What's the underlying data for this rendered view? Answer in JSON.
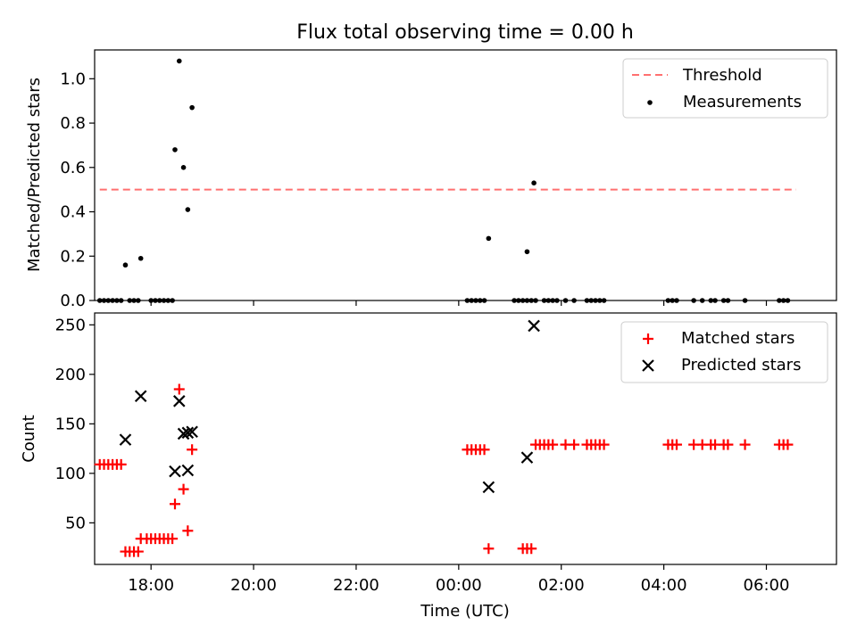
{
  "chart_data": [
    {
      "type": "scatter",
      "title": "Flux total observing time = 0.00 h",
      "xlabel": "",
      "ylabel": "Matched/Predicted stars",
      "xlim": [
        "16:54",
        "07:22"
      ],
      "ylim": [
        0.0,
        1.13
      ],
      "xticks": [
        "18:00",
        "20:00",
        "22:00",
        "00:00",
        "02:00",
        "04:00",
        "06:00"
      ],
      "yticks": [
        "0.0",
        "0.2",
        "0.4",
        "0.6",
        "0.8",
        "1.0"
      ],
      "threshold": 0.5,
      "legend": {
        "placement": "top-right",
        "entries": [
          "Threshold",
          "Measurements"
        ]
      },
      "series": [
        {
          "name": "Measurements",
          "color": "#000000",
          "points": [
            [
              "17:00",
              0
            ],
            [
              "17:05",
              0
            ],
            [
              "17:10",
              0
            ],
            [
              "17:15",
              0
            ],
            [
              "17:20",
              0
            ],
            [
              "17:25",
              0
            ],
            [
              "17:30",
              0.16
            ],
            [
              "17:35",
              0
            ],
            [
              "17:40",
              0
            ],
            [
              "17:45",
              0
            ],
            [
              "17:48",
              0.19
            ],
            [
              "18:00",
              0
            ],
            [
              "18:05",
              0
            ],
            [
              "18:10",
              0
            ],
            [
              "18:15",
              0
            ],
            [
              "18:20",
              0
            ],
            [
              "18:25",
              0
            ],
            [
              "18:28",
              0.68
            ],
            [
              "18:33",
              1.08
            ],
            [
              "18:38",
              0.6
            ],
            [
              "18:43",
              0.41
            ],
            [
              "18:48",
              0.87
            ],
            [
              "00:10",
              0
            ],
            [
              "00:15",
              0
            ],
            [
              "00:20",
              0
            ],
            [
              "00:25",
              0
            ],
            [
              "00:30",
              0
            ],
            [
              "00:35",
              0.28
            ],
            [
              "01:05",
              0
            ],
            [
              "01:10",
              0
            ],
            [
              "01:15",
              0
            ],
            [
              "01:20",
              0
            ],
            [
              "01:25",
              0
            ],
            [
              "01:30",
              0
            ],
            [
              "01:20",
              0.22
            ],
            [
              "01:28",
              0.53
            ],
            [
              "01:40",
              0
            ],
            [
              "01:45",
              0
            ],
            [
              "01:50",
              0
            ],
            [
              "01:55",
              0
            ],
            [
              "02:05",
              0
            ],
            [
              "02:15",
              0
            ],
            [
              "02:30",
              0
            ],
            [
              "02:35",
              0
            ],
            [
              "02:40",
              0
            ],
            [
              "02:45",
              0
            ],
            [
              "02:50",
              0
            ],
            [
              "04:05",
              0
            ],
            [
              "04:10",
              0
            ],
            [
              "04:15",
              0
            ],
            [
              "04:35",
              0
            ],
            [
              "04:45",
              0
            ],
            [
              "04:55",
              0
            ],
            [
              "05:00",
              0
            ],
            [
              "05:10",
              0
            ],
            [
              "05:15",
              0
            ],
            [
              "05:35",
              0
            ],
            [
              "06:15",
              0
            ],
            [
              "06:20",
              0
            ],
            [
              "06:25",
              0
            ]
          ]
        }
      ]
    },
    {
      "type": "scatter",
      "title": "",
      "xlabel": "Time (UTC)",
      "ylabel": "Count",
      "xlim": [
        "16:54",
        "07:22"
      ],
      "ylim": [
        8,
        262
      ],
      "xticks": [
        "18:00",
        "20:00",
        "22:00",
        "00:00",
        "02:00",
        "04:00",
        "06:00"
      ],
      "yticks": [
        "50",
        "100",
        "150",
        "200",
        "250"
      ],
      "legend": {
        "placement": "top-right",
        "entries": [
          "Matched stars",
          "Predicted stars"
        ]
      },
      "series": [
        {
          "name": "Matched stars",
          "color": "#ff0000",
          "marker": "+",
          "points": [
            [
              "17:00",
              109
            ],
            [
              "17:05",
              109
            ],
            [
              "17:10",
              109
            ],
            [
              "17:15",
              109
            ],
            [
              "17:20",
              109
            ],
            [
              "17:25",
              109
            ],
            [
              "17:30",
              21
            ],
            [
              "17:35",
              21
            ],
            [
              "17:40",
              21
            ],
            [
              "17:45",
              21
            ],
            [
              "17:48",
              34
            ],
            [
              "17:55",
              34
            ],
            [
              "18:00",
              34
            ],
            [
              "18:05",
              34
            ],
            [
              "18:10",
              34
            ],
            [
              "18:15",
              34
            ],
            [
              "18:20",
              34
            ],
            [
              "18:25",
              34
            ],
            [
              "18:28",
              69
            ],
            [
              "18:33",
              185
            ],
            [
              "18:38",
              84
            ],
            [
              "18:43",
              42
            ],
            [
              "18:48",
              124
            ],
            [
              "00:10",
              124
            ],
            [
              "00:15",
              124
            ],
            [
              "00:20",
              124
            ],
            [
              "00:25",
              124
            ],
            [
              "00:30",
              124
            ],
            [
              "00:35",
              24
            ],
            [
              "01:15",
              24
            ],
            [
              "01:20",
              24
            ],
            [
              "01:25",
              24
            ],
            [
              "01:30",
              129
            ],
            [
              "01:35",
              129
            ],
            [
              "01:40",
              129
            ],
            [
              "01:45",
              129
            ],
            [
              "01:50",
              129
            ],
            [
              "02:05",
              129
            ],
            [
              "02:15",
              129
            ],
            [
              "02:30",
              129
            ],
            [
              "02:35",
              129
            ],
            [
              "02:40",
              129
            ],
            [
              "02:45",
              129
            ],
            [
              "02:50",
              129
            ],
            [
              "04:05",
              129
            ],
            [
              "04:10",
              129
            ],
            [
              "04:15",
              129
            ],
            [
              "04:35",
              129
            ],
            [
              "04:45",
              129
            ],
            [
              "04:55",
              129
            ],
            [
              "05:00",
              129
            ],
            [
              "05:10",
              129
            ],
            [
              "05:15",
              129
            ],
            [
              "05:35",
              129
            ],
            [
              "06:15",
              129
            ],
            [
              "06:20",
              129
            ],
            [
              "06:25",
              129
            ]
          ]
        },
        {
          "name": "Predicted stars",
          "color": "#000000",
          "marker": "x",
          "points": [
            [
              "17:30",
              134
            ],
            [
              "17:48",
              178
            ],
            [
              "18:28",
              102
            ],
            [
              "18:33",
              173
            ],
            [
              "18:38",
              140
            ],
            [
              "18:43",
              103
            ],
            [
              "18:43",
              141
            ],
            [
              "18:48",
              142
            ],
            [
              "00:35",
              86
            ],
            [
              "01:20",
              116
            ],
            [
              "01:28",
              249
            ]
          ]
        }
      ]
    }
  ]
}
